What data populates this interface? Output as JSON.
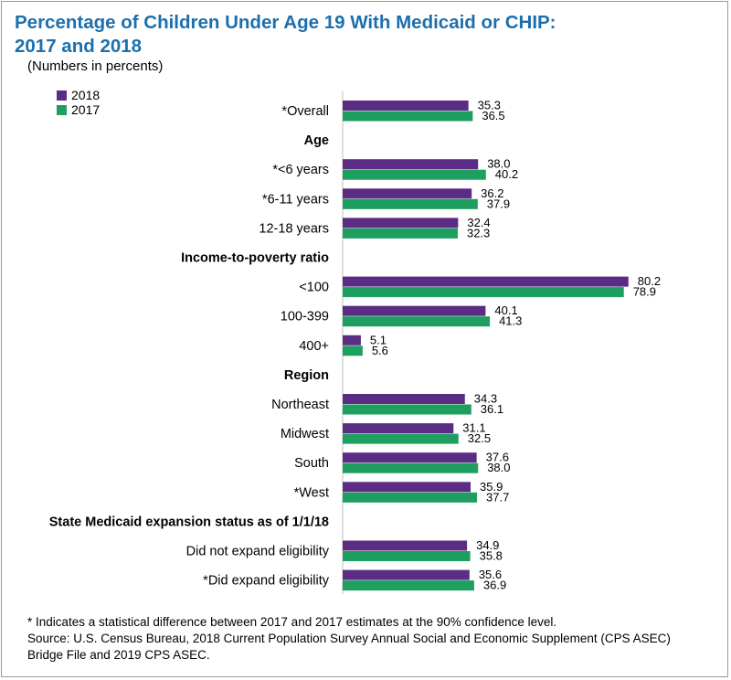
{
  "title_line1": "Percentage of Children Under Age 19 With Medicaid or CHIP:",
  "title_line2": "2017 and 2018",
  "subtitle": "(Numbers in percents)",
  "footnote": "* Indicates a statistical difference between 2017 and 2017 estimates at the 90% confidence level.",
  "source_line1": "Source: U.S. Census Bureau, 2018 Current Population Survey Annual Social and Economic Supplement (CPS ASEC)",
  "source_line2": "Bridge File and 2019 CPS ASEC.",
  "colors": {
    "s2018": "#5b2c83",
    "s2017": "#1e9e5f",
    "axis": "#bdbdbd"
  },
  "chart_data": {
    "type": "bar",
    "orientation": "horizontal",
    "legend_position": "top-left",
    "grid": false,
    "xlim": [
      0,
      85
    ],
    "series": [
      {
        "name": "2018",
        "color": "#5b2c83"
      },
      {
        "name": "2017",
        "color": "#1e9e5f"
      }
    ],
    "rows": [
      {
        "kind": "category",
        "label": "*Overall",
        "values": [
          35.3,
          36.5
        ]
      },
      {
        "kind": "header",
        "label": "Age"
      },
      {
        "kind": "category",
        "label": "*<6 years",
        "values": [
          38.0,
          40.2
        ]
      },
      {
        "kind": "category",
        "label": "*6-11 years",
        "values": [
          36.2,
          37.9
        ]
      },
      {
        "kind": "category",
        "label": "12-18 years",
        "values": [
          32.4,
          32.3
        ]
      },
      {
        "kind": "header",
        "label": "Income-to-poverty ratio"
      },
      {
        "kind": "category",
        "label": "<100",
        "values": [
          80.2,
          78.9
        ]
      },
      {
        "kind": "category",
        "label": "100-399",
        "values": [
          40.1,
          41.3
        ]
      },
      {
        "kind": "category",
        "label": "400+",
        "values": [
          5.1,
          5.6
        ]
      },
      {
        "kind": "header",
        "label": "Region"
      },
      {
        "kind": "category",
        "label": "Northeast",
        "values": [
          34.3,
          36.1
        ]
      },
      {
        "kind": "category",
        "label": "Midwest",
        "values": [
          31.1,
          32.5
        ]
      },
      {
        "kind": "category",
        "label": "South",
        "values": [
          37.6,
          38.0
        ]
      },
      {
        "kind": "category",
        "label": "*West",
        "values": [
          35.9,
          37.7
        ]
      },
      {
        "kind": "header",
        "label": "State Medicaid expansion status as of 1/1/18"
      },
      {
        "kind": "category",
        "label": "Did not expand eligibility",
        "values": [
          34.9,
          35.8
        ]
      },
      {
        "kind": "category",
        "label": "*Did expand eligibility",
        "values": [
          35.6,
          36.9
        ]
      }
    ]
  }
}
